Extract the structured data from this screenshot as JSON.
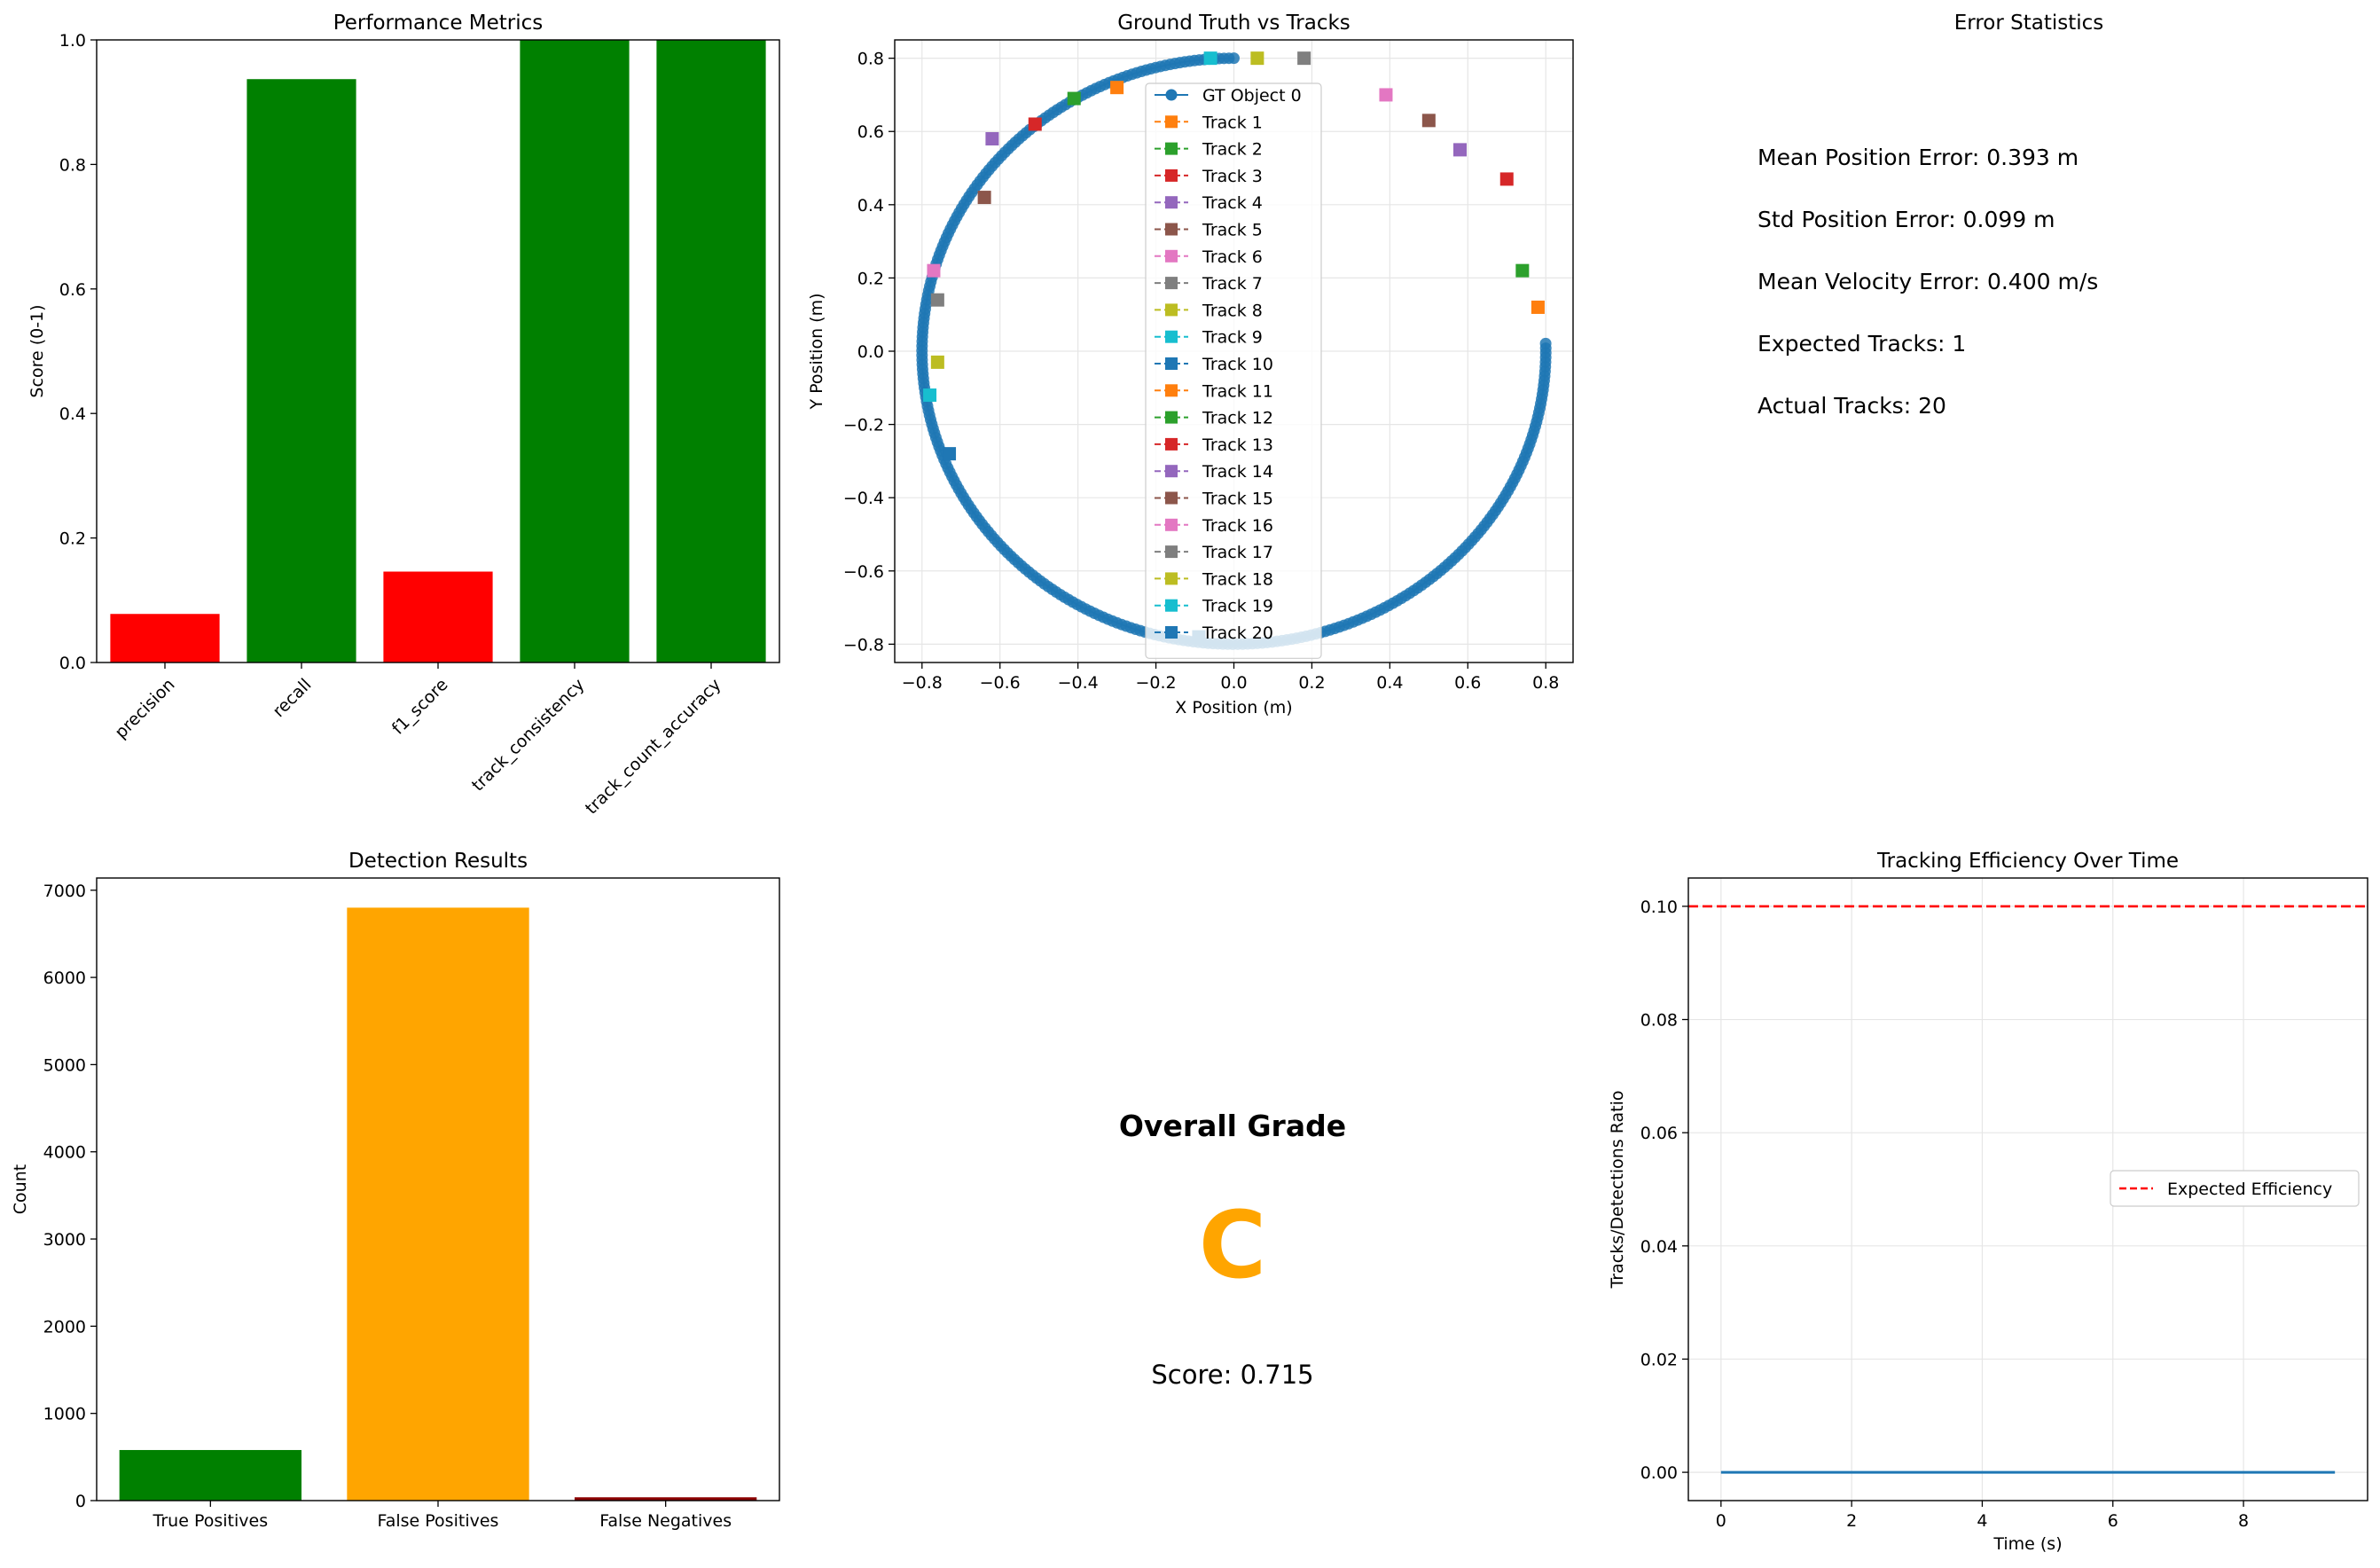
{
  "colors": {
    "red": "#ff0000",
    "green": "#008000",
    "orange": "#ffa500",
    "darkred": "#8b0000",
    "gt": "#1f77b4",
    "tab10": [
      "#1f77b4",
      "#ff7f0e",
      "#2ca02c",
      "#d62728",
      "#9467bd",
      "#8c564b",
      "#e377c2",
      "#7f7f7f",
      "#bcbd22",
      "#17becf"
    ],
    "grade": "#ffa500",
    "expected_line": "#ff0000"
  },
  "chart_data": [
    {
      "id": "performance",
      "type": "bar",
      "title": "Performance Metrics",
      "xlabel": "",
      "ylabel": "Score (0-1)",
      "ylim": [
        0,
        1.0
      ],
      "yticks": [
        "0.0",
        "0.2",
        "0.4",
        "0.6",
        "0.8",
        "1.0"
      ],
      "categories": [
        "precision",
        "recall",
        "f1_score",
        "track_consistency",
        "track_count_accuracy"
      ],
      "values": [
        0.078,
        0.937,
        0.146,
        1.0,
        1.0
      ],
      "bar_colors": [
        "red",
        "green",
        "red",
        "green",
        "green"
      ]
    },
    {
      "id": "tracks",
      "type": "scatter",
      "title": "Ground Truth vs Tracks",
      "xlabel": "X Position (m)",
      "ylabel": "Y Position (m)",
      "xlim": [
        -0.87,
        0.87
      ],
      "ylim": [
        -0.85,
        0.85
      ],
      "xticks": [
        "−0.8",
        "−0.6",
        "−0.4",
        "−0.2",
        "0.0",
        "0.2",
        "0.4",
        "0.6",
        "0.8"
      ],
      "yticks": [
        "−0.8",
        "−0.6",
        "−0.4",
        "−0.2",
        "0.0",
        "0.2",
        "0.4",
        "0.6",
        "0.8"
      ],
      "grid": true,
      "legend_placement": "center-top",
      "gt_series": {
        "name": "GT Object 0",
        "shape": "circle arc, radius 0.8 m, 90°→360° counterclockwise",
        "radius": 0.8,
        "start_angle_deg": 90,
        "end_angle_deg": 361.5,
        "points": 300
      },
      "series": [
        {
          "name": "Track 1",
          "x": 0.78,
          "y": 0.12
        },
        {
          "name": "Track 2",
          "x": 0.74,
          "y": 0.22
        },
        {
          "name": "Track 3",
          "x": 0.7,
          "y": 0.47
        },
        {
          "name": "Track 4",
          "x": 0.58,
          "y": 0.55
        },
        {
          "name": "Track 5",
          "x": 0.5,
          "y": 0.63
        },
        {
          "name": "Track 6",
          "x": 0.39,
          "y": 0.7
        },
        {
          "name": "Track 7",
          "x": 0.18,
          "y": 0.8
        },
        {
          "name": "Track 8",
          "x": 0.06,
          "y": 0.8
        },
        {
          "name": "Track 9",
          "x": -0.06,
          "y": 0.8
        },
        {
          "name": "Track 10",
          "x": -0.73,
          "y": -0.28
        },
        {
          "name": "Track 11",
          "x": -0.3,
          "y": 0.72
        },
        {
          "name": "Track 12",
          "x": -0.41,
          "y": 0.69
        },
        {
          "name": "Track 13",
          "x": -0.51,
          "y": 0.62
        },
        {
          "name": "Track 14",
          "x": -0.62,
          "y": 0.58
        },
        {
          "name": "Track 15",
          "x": -0.64,
          "y": 0.42
        },
        {
          "name": "Track 16",
          "x": -0.77,
          "y": 0.22
        },
        {
          "name": "Track 17",
          "x": -0.76,
          "y": 0.14
        },
        {
          "name": "Track 18",
          "x": -0.76,
          "y": -0.03
        },
        {
          "name": "Track 19",
          "x": -0.78,
          "y": -0.12
        },
        {
          "name": "Track 20",
          "x": -0.09,
          "y": -0.78
        }
      ]
    },
    {
      "id": "detections",
      "type": "bar",
      "title": "Detection Results",
      "xlabel": "",
      "ylabel": "Count",
      "ylim": [
        0,
        7140
      ],
      "yticks": [
        "0",
        "1000",
        "2000",
        "3000",
        "4000",
        "5000",
        "6000",
        "7000"
      ],
      "categories": [
        "True Positives",
        "False Positives",
        "False Negatives"
      ],
      "values": [
        580,
        6800,
        38
      ],
      "bar_colors": [
        "green",
        "orange",
        "darkred"
      ]
    },
    {
      "id": "efficiency",
      "type": "line",
      "title": "Tracking Efficiency Over Time",
      "xlabel": "Time (s)",
      "ylabel": "Tracks/Detections Ratio",
      "xlim": [
        -0.5,
        9.9
      ],
      "ylim": [
        -0.005,
        0.105
      ],
      "xticks": [
        "0",
        "2",
        "4",
        "6",
        "8"
      ],
      "yticks": [
        "0.00",
        "0.02",
        "0.04",
        "0.06",
        "0.08",
        "0.10"
      ],
      "grid": true,
      "legend_placement": "center-right",
      "series": [
        {
          "x": [
            0,
            9.4
          ],
          "y": [
            0,
            0
          ]
        }
      ],
      "reference_line": {
        "name": "Expected Efficiency",
        "y": 0.1,
        "style": "dashed"
      }
    }
  ],
  "error_stats": {
    "title": "Error Statistics",
    "lines": [
      "Mean Position Error: 0.393 m",
      "Std Position Error: 0.099 m",
      "Mean Velocity Error: 0.400 m/s",
      "Expected Tracks: 1",
      "Actual Tracks: 20"
    ]
  },
  "grade": {
    "title": "Overall Grade",
    "letter": "C",
    "score_text": "Score: 0.715"
  }
}
